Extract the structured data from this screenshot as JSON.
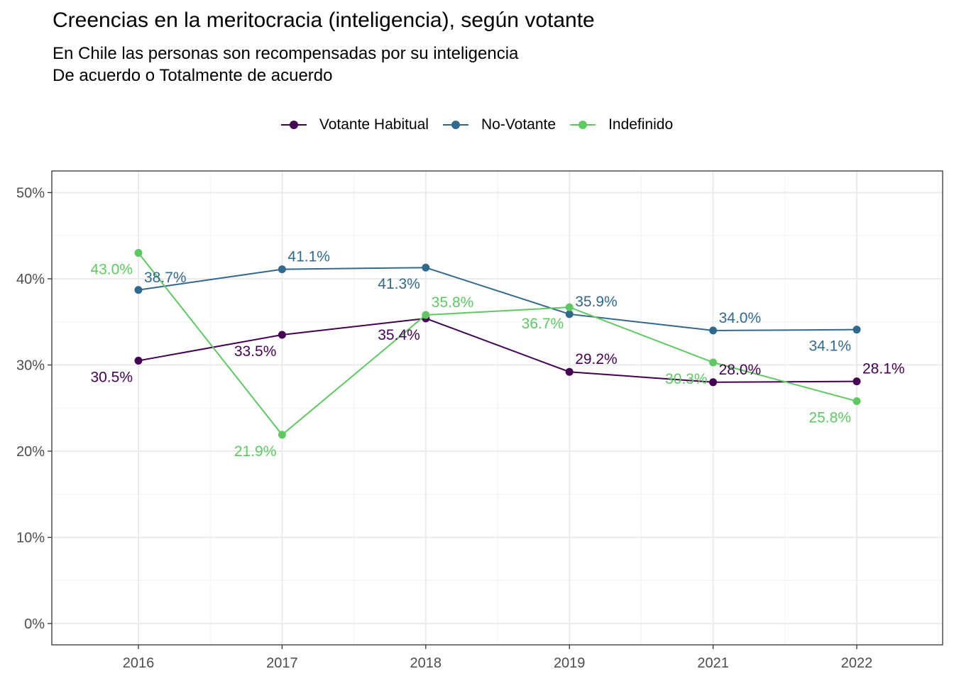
{
  "chart_data": {
    "type": "line",
    "title": "Creencias en la meritocracia (inteligencia), según votante",
    "subtitle_lines": [
      "En Chile las personas son recompensadas por su inteligencia",
      "De acuerdo o Totalmente de acuerdo"
    ],
    "x": [
      "2016",
      "2017",
      "2018",
      "2019",
      "2021",
      "2022"
    ],
    "ylim": [
      0,
      0.5
    ],
    "yticks": [
      0,
      0.1,
      0.2,
      0.3,
      0.4,
      0.5
    ],
    "ytick_labels": [
      "0%",
      "10%",
      "20%",
      "30%",
      "40%",
      "50%"
    ],
    "grid": true,
    "legend_position": "top",
    "series": [
      {
        "name": "Votante Habitual",
        "color": "#440154",
        "values": [
          0.305,
          0.335,
          0.354,
          0.292,
          0.28,
          0.281
        ],
        "labels": [
          "30.5%",
          "33.5%",
          "35.4%",
          "29.2%",
          "28.0%",
          "28.1%"
        ]
      },
      {
        "name": "No-Votante",
        "color": "#31688e",
        "values": [
          0.387,
          0.411,
          0.413,
          0.359,
          0.34,
          0.341
        ],
        "labels": [
          "38.7%",
          "41.1%",
          "41.3%",
          "35.9%",
          "34.0%",
          "34.1%"
        ]
      },
      {
        "name": "Indefinido",
        "color": "#5ec962",
        "values": [
          0.43,
          0.219,
          0.358,
          0.367,
          0.303,
          0.258
        ],
        "labels": [
          "43.0%",
          "21.9%",
          "35.8%",
          "36.7%",
          "30.3%",
          "25.8%"
        ]
      }
    ],
    "legend_glyph": "a"
  }
}
